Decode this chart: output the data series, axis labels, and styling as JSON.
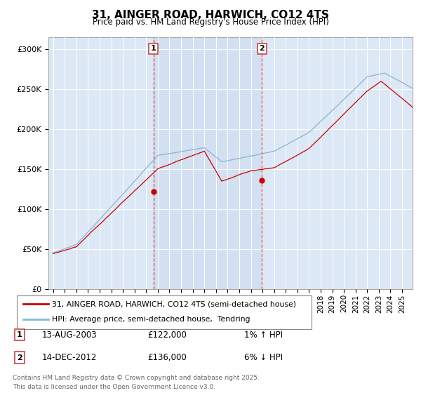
{
  "title": "31, AINGER ROAD, HARWICH, CO12 4TS",
  "subtitle": "Price paid vs. HM Land Registry's House Price Index (HPI)",
  "y_ticks": [
    0,
    50000,
    100000,
    150000,
    200000,
    250000,
    300000
  ],
  "ylim": [
    0,
    315000
  ],
  "background_color": "#ffffff",
  "plot_bg": "#dce8f5",
  "line1_color": "#cc0000",
  "line2_color": "#8ab4d4",
  "vline_color": "#cc4444",
  "shade_color": "#ccdcef",
  "t1_year": 2003.62,
  "t2_year": 2012.95,
  "t1_price": 122000,
  "t2_price": 136000,
  "legend1": "31, AINGER ROAD, HARWICH, CO12 4TS (semi-detached house)",
  "legend2": "HPI: Average price, semi-detached house,  Tendring",
  "footnote1": "Contains HM Land Registry data © Crown copyright and database right 2025.",
  "footnote2": "This data is licensed under the Open Government Licence v3.0.",
  "marker1_date": "13-AUG-2003",
  "marker1_price": "£122,000",
  "marker1_pct": "1% ↑ HPI",
  "marker2_date": "14-DEC-2012",
  "marker2_price": "£136,000",
  "marker2_pct": "6% ↓ HPI"
}
